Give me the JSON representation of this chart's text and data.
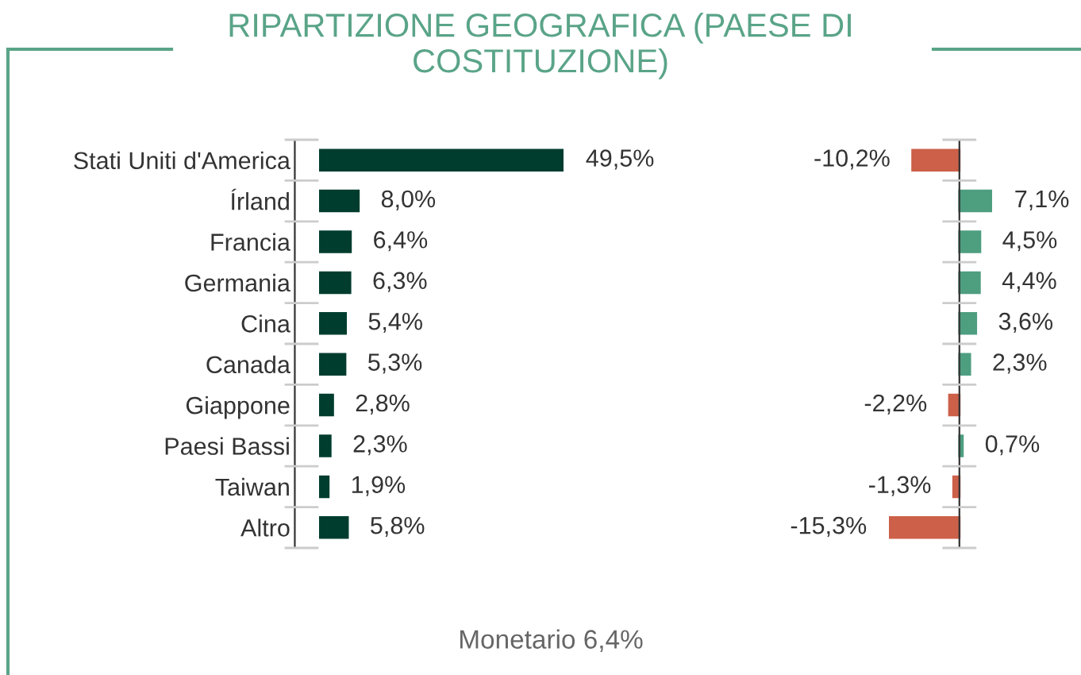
{
  "chart_data": [
    {
      "type": "bar",
      "orientation": "horizontal",
      "title": "RIPARTIZIONE GEOGRAFICA (PAESE DI COSTITUZIONE)",
      "categories": [
        "Stati Uniti d'America",
        "Írland",
        "Francia",
        "Germania",
        "Cina",
        "Canada",
        "Giappone",
        "Paesi Bassi",
        "Taiwan",
        "Altro"
      ],
      "values": [
        49.5,
        8.0,
        6.4,
        6.3,
        5.4,
        5.3,
        2.8,
        2.3,
        1.9,
        5.8
      ],
      "value_labels": [
        "49,5%",
        "8,0%",
        "6,4%",
        "6,3%",
        "5,4%",
        "5,3%",
        "2,8%",
        "2,3%",
        "1,9%",
        "5,8%"
      ],
      "color": "#003d2e",
      "grid": false,
      "legend": false,
      "annotations": [
        "Monetario 6,4%"
      ]
    },
    {
      "type": "bar",
      "orientation": "horizontal",
      "categories": [
        null,
        null,
        null,
        null,
        null,
        null,
        null,
        null,
        null,
        null
      ],
      "values": [
        -10.2,
        7.1,
        4.5,
        4.4,
        3.6,
        2.3,
        -2.2,
        0.7,
        -1.3,
        -15.3
      ],
      "value_labels": [
        "-10,2%",
        "7,1%",
        "4,5%",
        "4,4%",
        "3,6%",
        "2,3%",
        "-2,2%",
        "0,7%",
        "-1,3%",
        "-15,3%"
      ],
      "colors": [
        "#cc6048",
        "#4e9e80",
        "#4e9e80",
        "#4e9e80",
        "#4e9e80",
        "#4e9e80",
        "#cc6048",
        "#4e9e80",
        "#cc6048",
        "#cc6048"
      ],
      "grid": false,
      "legend": false
    }
  ]
}
